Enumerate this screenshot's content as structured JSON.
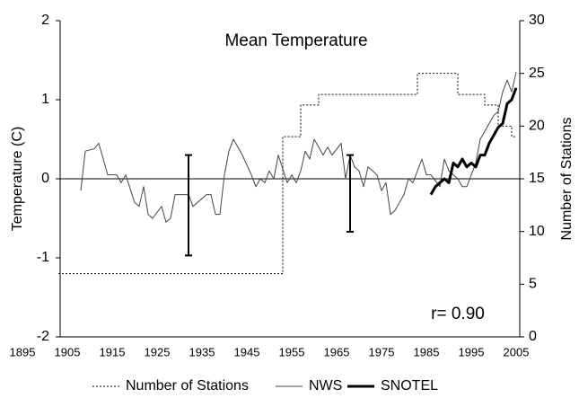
{
  "chart_data": {
    "type": "line",
    "title": "Mean Temperature",
    "annotation": "r= 0.90",
    "y_label": "Temperature (C)",
    "y2_label": "Number of Stations",
    "xlim": [
      1895,
      2005
    ],
    "xticks": [
      1895,
      1905,
      1915,
      1925,
      1935,
      1945,
      1955,
      1965,
      1975,
      1985,
      1995,
      2005
    ],
    "ylim": [
      -2,
      2
    ],
    "yticks": [
      -2,
      -1,
      0,
      1,
      2
    ],
    "y2lim": [
      0,
      30
    ],
    "y2ticks": [
      0,
      5,
      10,
      15,
      20,
      25,
      30
    ],
    "series": [
      {
        "name": "Number of Stations",
        "color": "#000000",
        "style": "dotted",
        "axis": "y2",
        "x": [
          1903,
          1953,
          1953,
          1957,
          1957,
          1961,
          1961,
          1983,
          1983,
          1992,
          1992,
          1998,
          1998,
          2001,
          2001,
          2004,
          2004,
          2005
        ],
        "values": [
          6,
          6,
          19,
          19,
          22,
          22,
          23,
          23,
          25,
          25,
          23,
          23,
          22,
          22,
          20,
          20,
          19,
          19
        ]
      },
      {
        "name": "NWS",
        "color": "#444444",
        "style": "thin",
        "x": [
          1908,
          1909,
          1911,
          1912,
          1914,
          1916,
          1917,
          1918,
          1920,
          1921,
          1922,
          1923,
          1924,
          1926,
          1927,
          1928,
          1929,
          1930,
          1932,
          1933,
          1934,
          1936,
          1937,
          1938,
          1939,
          1940,
          1941,
          1942,
          1944,
          1946,
          1947,
          1948,
          1949,
          1950,
          1951,
          1952,
          1954,
          1955,
          1956,
          1957,
          1958,
          1959,
          1960,
          1962,
          1963,
          1964,
          1966,
          1967,
          1968,
          1969,
          1970,
          1971,
          1972,
          1974,
          1975,
          1976,
          1977,
          1978,
          1980,
          1981,
          1982,
          1984,
          1985,
          1986,
          1988,
          1989,
          1990,
          1992,
          1993,
          1994,
          1996,
          1997,
          1999,
          2000,
          2001,
          2002,
          2003,
          2004,
          2005
        ],
        "values": [
          -0.15,
          0.35,
          0.38,
          0.45,
          0.05,
          0.05,
          -0.05,
          0.05,
          -0.3,
          -0.35,
          -0.1,
          -0.45,
          -0.5,
          -0.35,
          -0.55,
          -0.5,
          -0.2,
          -0.2,
          -0.2,
          -0.35,
          -0.3,
          -0.2,
          -0.2,
          -0.45,
          -0.45,
          0.05,
          0.35,
          0.5,
          0.3,
          0.05,
          -0.1,
          0.0,
          -0.05,
          0.1,
          0.0,
          0.3,
          -0.05,
          0.05,
          -0.05,
          0.1,
          0.35,
          0.25,
          0.5,
          0.3,
          0.4,
          0.3,
          0.45,
          0.0,
          0.3,
          0.15,
          0.1,
          -0.1,
          0.15,
          0.05,
          -0.15,
          -0.05,
          -0.45,
          -0.4,
          -0.2,
          0.0,
          -0.05,
          0.25,
          0.05,
          0.05,
          -0.1,
          0.25,
          0.1,
          0.0,
          -0.1,
          -0.1,
          0.2,
          0.5,
          0.7,
          0.8,
          0.85,
          1.1,
          1.25,
          1.1,
          1.35
        ]
      },
      {
        "name": "SNOTEL",
        "color": "#000000",
        "style": "thick",
        "x": [
          1986,
          1987,
          1988,
          1989,
          1990,
          1991,
          1992,
          1993,
          1994,
          1995,
          1996,
          1997,
          1998,
          1999,
          2000,
          2001,
          2002,
          2003,
          2004,
          2005
        ],
        "values": [
          -0.2,
          -0.1,
          -0.05,
          0.0,
          -0.05,
          0.2,
          0.15,
          0.25,
          0.15,
          0.2,
          0.15,
          0.3,
          0.3,
          0.45,
          0.55,
          0.65,
          0.7,
          0.95,
          1.0,
          1.15
        ]
      }
    ],
    "error_bars": [
      {
        "x": 1932,
        "low": -0.97,
        "high": 0.3
      },
      {
        "x": 1968,
        "low": -0.67,
        "high": 0.3
      }
    ]
  }
}
